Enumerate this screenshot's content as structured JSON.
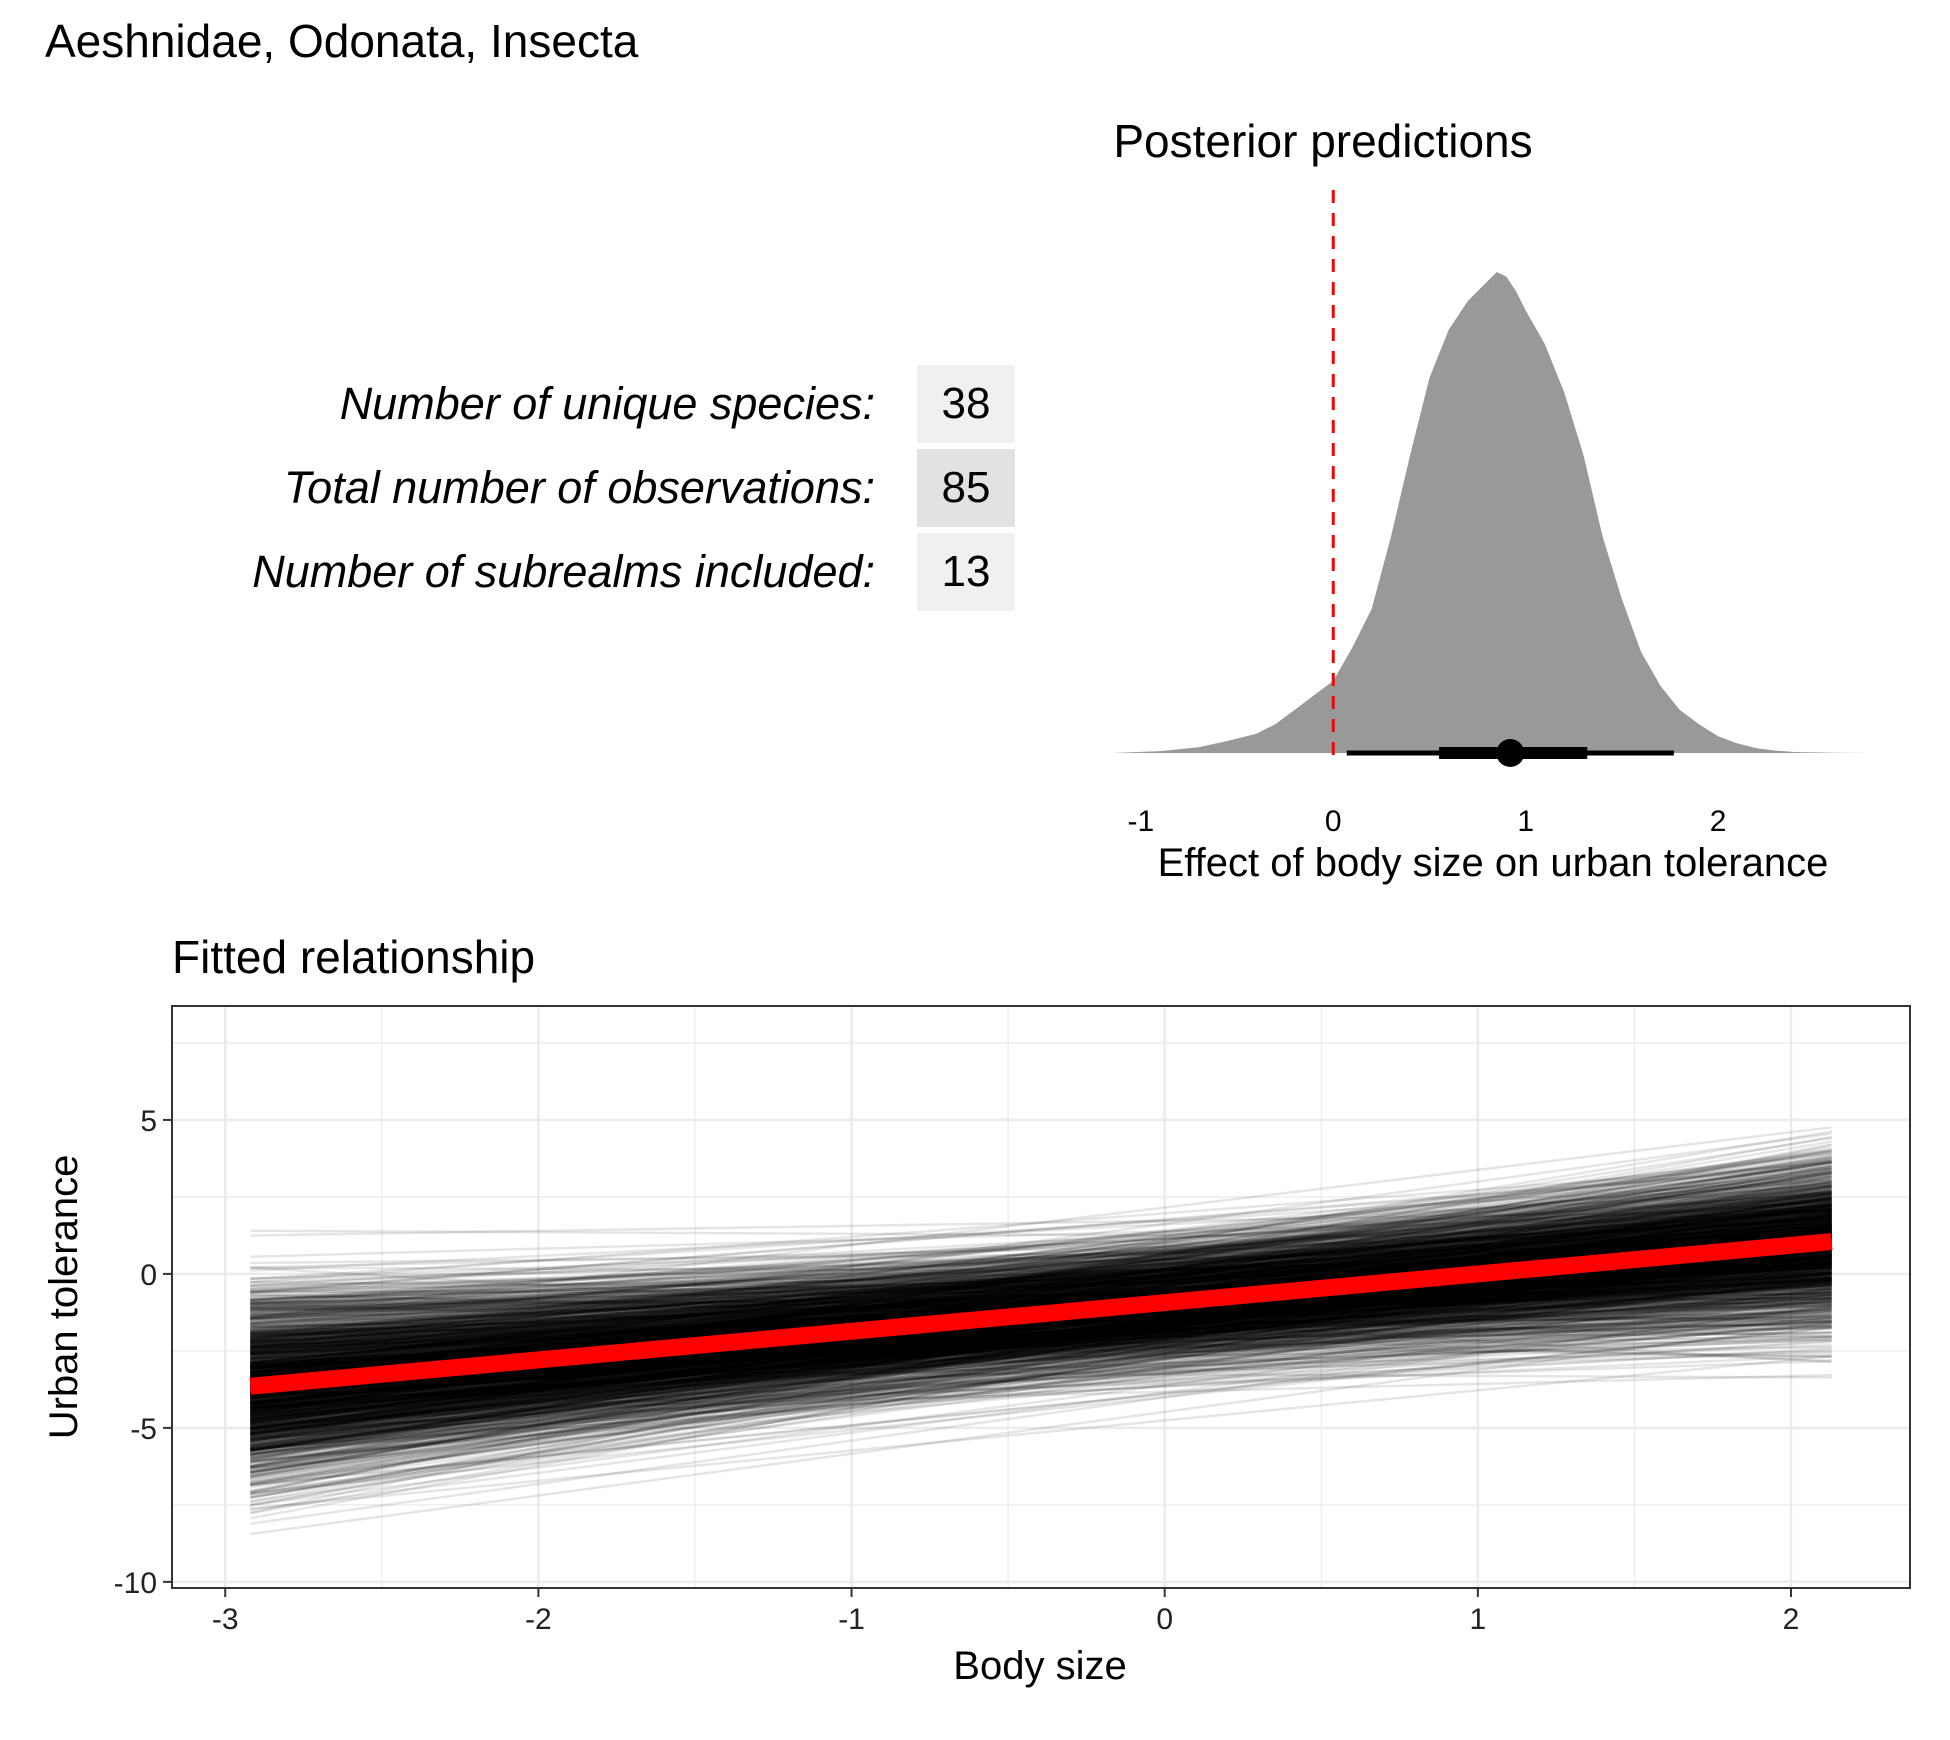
{
  "title": "Aeshnidae, Odonata, Insecta",
  "stats": [
    {
      "label": "Number of unique species:",
      "value": "38",
      "shade": "#f0f0f0"
    },
    {
      "label": "Total number of observations:",
      "value": "85",
      "shade": "#e2e2e2"
    },
    {
      "label": "Number of subrealms included:",
      "value": "13",
      "shade": "#f0f0f0"
    }
  ],
  "chart_data": [
    {
      "type": "area",
      "title": "Posterior predictions",
      "xlabel": "Effect of body size on urban tolerance",
      "ylabel": "",
      "xlim": [
        -1.15,
        2.8
      ],
      "xticks": [
        "-1",
        "0",
        "1",
        "2"
      ],
      "reference_line_x": 0,
      "reference_line_color": "#ff0000",
      "fill_color": "#999999",
      "density": {
        "x": [
          -1.15,
          -0.9,
          -0.7,
          -0.55,
          -0.4,
          -0.3,
          -0.2,
          -0.1,
          0.0,
          0.1,
          0.2,
          0.3,
          0.4,
          0.5,
          0.6,
          0.7,
          0.8,
          0.85,
          0.9,
          0.95,
          1.0,
          1.1,
          1.2,
          1.3,
          1.4,
          1.5,
          1.6,
          1.7,
          1.8,
          1.9,
          2.0,
          2.1,
          2.2,
          2.3,
          2.4,
          2.6,
          2.8
        ],
        "y": [
          0.0,
          0.004,
          0.012,
          0.025,
          0.04,
          0.06,
          0.09,
          0.12,
          0.15,
          0.22,
          0.3,
          0.45,
          0.62,
          0.78,
          0.88,
          0.94,
          0.98,
          1.0,
          0.99,
          0.96,
          0.92,
          0.85,
          0.75,
          0.62,
          0.45,
          0.32,
          0.21,
          0.14,
          0.09,
          0.06,
          0.035,
          0.02,
          0.01,
          0.005,
          0.002,
          0.0005,
          0.0
        ]
      },
      "point_estimate": 0.92,
      "interval_inner": [
        0.55,
        1.32
      ],
      "interval_outer": [
        0.07,
        1.77
      ]
    },
    {
      "type": "line",
      "title": "Fitted relationship",
      "xlabel": "Body size",
      "ylabel": "Urban tolerance",
      "xlim": [
        -3.17,
        2.38
      ],
      "ylim": [
        -10.2,
        8.7
      ],
      "xticks": [
        "-3",
        "-2",
        "-1",
        "0",
        "1",
        "2"
      ],
      "yticks": [
        "-10",
        "-5",
        "0",
        "5"
      ],
      "x_range": [
        -2.92,
        2.13
      ],
      "posterior_draws": {
        "count": 1500,
        "color": "#000000",
        "intercept_mean": -1.0,
        "intercept_sd": 1.0,
        "slope_mean": 0.92,
        "slope_sd": 0.38
      },
      "fitted_line": {
        "x": [
          -2.92,
          2.13
        ],
        "y": [
          -3.65,
          1.05
        ],
        "color": "#ff0000"
      }
    }
  ]
}
